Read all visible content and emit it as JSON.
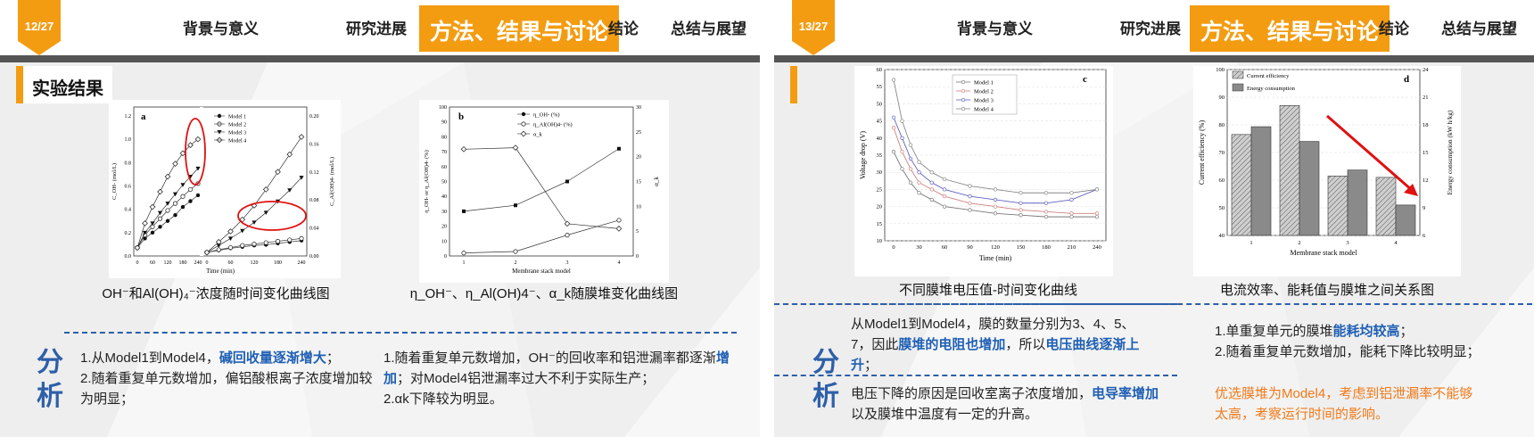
{
  "nav_items": [
    "背景与意义",
    "研究进展",
    "方法、结果与讨论",
    "结论",
    "总结与展望"
  ],
  "left": {
    "page": "12/27",
    "section_title": "实验结果",
    "chart_a": {
      "type": "line",
      "panel": "a",
      "x_ticks": [
        "0",
        "60",
        "120",
        "180",
        "240"
      ],
      "xlabel": "Time (min)",
      "ylabel_left": "C_OH- (mol/L)",
      "ylabel_right": "C_Al(OH)4- (mol/L)",
      "left_ticks": [
        "0.0",
        "0.2",
        "0.4",
        "0.6",
        "0.8",
        "1.0",
        "1.2"
      ],
      "right_ticks": [
        "0.00",
        "0.04",
        "0.08",
        "0.12",
        "0.16",
        "0.20"
      ],
      "legend": [
        "Model 1",
        "Model 2",
        "Model 3",
        "Model 4"
      ],
      "oh": [
        {
          "name": "Model 1",
          "x": [
            0,
            30,
            60,
            90,
            120,
            150,
            180,
            210,
            240
          ],
          "y": [
            0.07,
            0.15,
            0.2,
            0.25,
            0.3,
            0.35,
            0.42,
            0.47,
            0.52
          ]
        },
        {
          "name": "Model 2",
          "x": [
            0,
            30,
            60,
            90,
            120,
            150,
            180,
            210,
            240
          ],
          "y": [
            0.07,
            0.18,
            0.25,
            0.32,
            0.39,
            0.45,
            0.51,
            0.57,
            0.62
          ]
        },
        {
          "name": "Model 3",
          "x": [
            0,
            30,
            60,
            90,
            120,
            150,
            180,
            210,
            240
          ],
          "y": [
            0.07,
            0.2,
            0.28,
            0.37,
            0.45,
            0.53,
            0.61,
            0.68,
            0.75
          ]
        },
        {
          "name": "Model 4",
          "x": [
            0,
            30,
            60,
            90,
            120,
            150,
            180,
            210,
            240
          ],
          "y": [
            0.07,
            0.28,
            0.42,
            0.55,
            0.68,
            0.79,
            0.88,
            0.95,
            1.0
          ]
        }
      ],
      "al": [
        {
          "name": "Model 1",
          "x": [
            0,
            30,
            60,
            90,
            120,
            150,
            180,
            210,
            240
          ],
          "y": [
            0.005,
            0.008,
            0.011,
            0.013,
            0.015,
            0.016,
            0.018,
            0.02,
            0.022
          ]
        },
        {
          "name": "Model 2",
          "x": [
            0,
            30,
            60,
            90,
            120,
            150,
            180,
            210,
            240
          ],
          "y": [
            0.005,
            0.009,
            0.012,
            0.015,
            0.017,
            0.019,
            0.021,
            0.023,
            0.025
          ]
        },
        {
          "name": "Model 3",
          "x": [
            0,
            30,
            60,
            90,
            120,
            150,
            180,
            210,
            240
          ],
          "y": [
            0.005,
            0.015,
            0.025,
            0.036,
            0.048,
            0.062,
            0.078,
            0.094,
            0.112
          ]
        },
        {
          "name": "Model 4",
          "x": [
            0,
            30,
            60,
            90,
            120,
            150,
            180,
            210,
            240
          ],
          "y": [
            0.005,
            0.02,
            0.035,
            0.052,
            0.072,
            0.095,
            0.12,
            0.145,
            0.17
          ]
        }
      ]
    },
    "chart_b": {
      "type": "line",
      "panel": "b",
      "xlabel": "Membrane stack model",
      "ylabel_left": "η_OH- or η_Al(OH)4- (%)",
      "ylabel_right": "α_k",
      "x_ticks": [
        "1",
        "2",
        "3",
        "4"
      ],
      "left_ticks": [
        "0",
        "10",
        "20",
        "30",
        "40",
        "50",
        "60",
        "70",
        "80",
        "90",
        "100"
      ],
      "right_ticks": [
        "0",
        "5",
        "10",
        "15",
        "20",
        "25",
        "30"
      ],
      "legend": [
        "η_OH- (%)",
        "η_Al(OH)4- (%)",
        "α_k"
      ],
      "series": [
        {
          "name": "η_OH- (%)",
          "x": [
            1,
            2,
            3,
            4
          ],
          "y": [
            30,
            34,
            50,
            72
          ]
        },
        {
          "name": "η_Al(OH)4- (%)",
          "x": [
            1,
            2,
            3,
            4
          ],
          "y": [
            2,
            3,
            14,
            24
          ]
        },
        {
          "name": "α_k",
          "x": [
            1,
            2,
            3,
            4
          ],
          "y": [
            21.5,
            21.8,
            6.5,
            5.5
          ]
        }
      ]
    },
    "caption_a": "OH⁻和Al(OH)₄⁻浓度随时间变化曲线图",
    "caption_b": "η_OH⁻、η_Al(OH)4⁻、α_k随膜堆变化曲线图",
    "analysis_label": [
      "分",
      "析"
    ],
    "col1": [
      {
        "t": "1.从Model1到Model4，",
        "hl": false
      },
      {
        "t": "碱回收量逐渐增大",
        "hl": true
      },
      {
        "t": "；",
        "hl": false
      },
      {
        "t": "2.随着重复单元数增加，偏铝酸根离子浓度增加较为明显；",
        "hl": false
      }
    ],
    "col2": [
      {
        "t": "1.随着重复单元数增加，OH⁻的回收率和铝泄漏率都逐渐",
        "hl": false
      },
      {
        "t": "增加",
        "hl": true
      },
      {
        "t": "；对Model4铝泄漏率过大不利于实际生产；",
        "hl": false
      },
      {
        "t": "2.α",
        "hl": false
      },
      {
        "t": "k下降较为明显。",
        "hl": false
      }
    ]
  },
  "right": {
    "page": "13/27",
    "chart_c": {
      "type": "line",
      "panel": "c",
      "xlabel": "Time (min)",
      "ylabel": "Voltage drop (V)",
      "x_ticks": [
        "0",
        "30",
        "60",
        "90",
        "120",
        "150",
        "180",
        "210",
        "240"
      ],
      "y_ticks": [
        "10",
        "15",
        "20",
        "25",
        "30",
        "35",
        "40",
        "45",
        "50",
        "55",
        "60"
      ],
      "legend": [
        "Model 1",
        "Model 2",
        "Model 3",
        "Model 4"
      ],
      "series": [
        {
          "name": "Model 1",
          "x": [
            0,
            10,
            20,
            30,
            45,
            60,
            90,
            120,
            150,
            180,
            210,
            240
          ],
          "y": [
            36,
            31,
            27,
            24,
            22,
            20,
            19,
            18,
            17.5,
            17,
            17,
            17
          ]
        },
        {
          "name": "Model 2",
          "x": [
            0,
            10,
            20,
            30,
            45,
            60,
            90,
            120,
            150,
            180,
            210,
            240
          ],
          "y": [
            43,
            36,
            31,
            27,
            25,
            23,
            21,
            20,
            19,
            18.5,
            18,
            18
          ]
        },
        {
          "name": "Model 3",
          "x": [
            0,
            10,
            20,
            30,
            45,
            60,
            90,
            120,
            150,
            180,
            210,
            240
          ],
          "y": [
            46,
            40,
            34,
            30,
            27,
            25,
            23,
            22,
            21,
            21,
            22,
            25
          ]
        },
        {
          "name": "Model 4",
          "x": [
            0,
            10,
            20,
            30,
            45,
            60,
            90,
            120,
            150,
            180,
            210,
            240
          ],
          "y": [
            57,
            45,
            38,
            33,
            30,
            28,
            26,
            25,
            24,
            24,
            24,
            25
          ]
        }
      ]
    },
    "chart_d": {
      "type": "bar",
      "panel": "d",
      "xlabel": "Membrane stack model",
      "ylabel_left": "Current efficiency (%)",
      "ylabel_right": "Energy consumption (kW h/kg)",
      "categories": [
        "1",
        "2",
        "3",
        "4"
      ],
      "left_ticks": [
        "40",
        "50",
        "60",
        "70",
        "80",
        "90",
        "100"
      ],
      "right_ticks": [
        "6",
        "9",
        "12",
        "15",
        "18",
        "21",
        "24"
      ],
      "legend": [
        "Current efficiency",
        "Energy consumption"
      ],
      "series": [
        {
          "name": "Current efficiency",
          "values": [
            76.5,
            87,
            61.5,
            61
          ]
        },
        {
          "name": "Energy consumption",
          "values": [
            17.8,
            16.2,
            13.1,
            9.3
          ]
        }
      ]
    },
    "caption_c": "不同膜堆电压值-时间变化曲线",
    "caption_d": "电流效率、能耗值与膜堆之间关系图",
    "analysis_label": [
      "分",
      "析"
    ],
    "t1_a": "从Model1到Model4，膜的数量分别为3、4、5、7，因此",
    "t1_b": "膜堆的电阻也增加",
    "t1_c": "，所以",
    "t1_d": "电压曲线逐渐上升",
    "t1_e": "；",
    "t2_a": "电压下降的原因是回收室离子浓度增加，",
    "t2_b": "电导率增加",
    "t2_c": "以及膜堆中温度有一定的升高。",
    "t3_a": "1.单重复单元的膜堆",
    "t3_b": "能耗均较高",
    "t3_c": "；",
    "t4": "2.随着重复单元数增加，能耗下降比较明显；",
    "t5": "优选膜堆为Model4，考虑到铝泄漏率不能够太高，考察运行时间的影响。"
  }
}
